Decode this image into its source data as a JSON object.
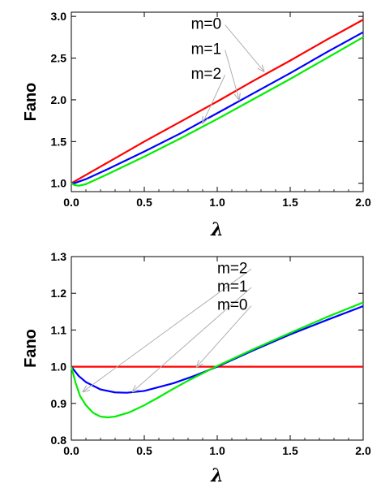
{
  "chart_data": [
    {
      "type": "line",
      "xlabel": "λ",
      "ylabel": "Fano",
      "xlim": [
        0,
        2.0
      ],
      "ylim": [
        0.9,
        3.05
      ],
      "x_ticks": [
        "0.0",
        "0.5",
        "1.0",
        "1.5",
        "2.0"
      ],
      "x_tick_values": [
        0,
        0.5,
        1.0,
        1.5,
        2.0
      ],
      "y_ticks": [
        "1.0",
        "1.5",
        "2.0",
        "2.5",
        "3.0"
      ],
      "y_tick_values": [
        1.0,
        1.5,
        2.0,
        2.5,
        3.0
      ],
      "series": [
        {
          "name": "m=0",
          "color": "#ff0000",
          "x": [
            0,
            0.25,
            0.5,
            0.75,
            1.0,
            1.25,
            1.5,
            1.75,
            2.0
          ],
          "values": [
            1.0,
            1.25,
            1.5,
            1.74,
            1.98,
            2.23,
            2.47,
            2.72,
            2.96
          ]
        },
        {
          "name": "m=1",
          "color": "#0000ff",
          "x": [
            0,
            0.02,
            0.1,
            0.25,
            0.5,
            0.75,
            1.0,
            1.25,
            1.5,
            1.75,
            2.0
          ],
          "values": [
            1.0,
            1.0,
            1.05,
            1.17,
            1.38,
            1.6,
            1.84,
            2.08,
            2.32,
            2.57,
            2.81
          ]
        },
        {
          "name": "m=2",
          "color": "#00ee00",
          "x": [
            0,
            0.02,
            0.05,
            0.1,
            0.15,
            0.25,
            0.5,
            0.75,
            1.0,
            1.25,
            1.5,
            1.75,
            2.0
          ],
          "values": [
            1.0,
            0.98,
            0.97,
            0.99,
            1.03,
            1.11,
            1.32,
            1.54,
            1.77,
            2.01,
            2.25,
            2.5,
            2.75
          ]
        }
      ],
      "annotations": [
        {
          "text": "m=0",
          "tx": 0.82,
          "ty": 2.85,
          "ax": 1.32,
          "ay": 2.34
        },
        {
          "text": "m=1",
          "tx": 0.82,
          "ty": 2.55,
          "ax": 1.15,
          "ay": 2.0
        },
        {
          "text": "m=2",
          "tx": 0.82,
          "ty": 2.25,
          "ax": 0.9,
          "ay": 1.72
        }
      ]
    },
    {
      "type": "line",
      "xlabel": "λ",
      "ylabel": "Fano",
      "xlim": [
        0,
        2.0
      ],
      "ylim": [
        0.8,
        1.3
      ],
      "x_ticks": [
        "0.0",
        "0.5",
        "1.0",
        "1.5",
        "2.0"
      ],
      "x_tick_values": [
        0,
        0.5,
        1.0,
        1.5,
        2.0
      ],
      "y_ticks": [
        "0.8",
        "0.9",
        "1.0",
        "1.1",
        "1.2",
        "1.3"
      ],
      "y_tick_values": [
        0.8,
        0.9,
        1.0,
        1.1,
        1.2,
        1.3
      ],
      "series": [
        {
          "name": "m=0",
          "color": "#ff0000",
          "x": [
            0,
            2.0
          ],
          "values": [
            1.0,
            1.0
          ]
        },
        {
          "name": "m=1",
          "color": "#0000ff",
          "x": [
            0,
            0.05,
            0.1,
            0.2,
            0.3,
            0.38,
            0.5,
            0.7,
            0.85,
            1.0,
            1.25,
            1.5,
            1.75,
            2.0
          ],
          "values": [
            1.0,
            0.975,
            0.958,
            0.938,
            0.93,
            0.929,
            0.934,
            0.955,
            0.976,
            1.0,
            1.045,
            1.088,
            1.127,
            1.165
          ]
        },
        {
          "name": "m=2",
          "color": "#00ee00",
          "x": [
            0,
            0.03,
            0.06,
            0.1,
            0.15,
            0.2,
            0.25,
            0.3,
            0.4,
            0.5,
            0.6,
            0.7,
            0.8,
            0.9,
            1.0,
            1.25,
            1.5,
            1.75,
            2.0
          ],
          "values": [
            1.0,
            0.955,
            0.92,
            0.895,
            0.874,
            0.864,
            0.862,
            0.864,
            0.876,
            0.895,
            0.917,
            0.94,
            0.962,
            0.982,
            1.002,
            1.048,
            1.092,
            1.135,
            1.175
          ]
        }
      ],
      "annotations": [
        {
          "text": "m=2",
          "tx": 1.0,
          "ty": 1.255,
          "ax": 0.08,
          "ay": 0.932
        },
        {
          "text": "m=1",
          "tx": 1.0,
          "ty": 1.205,
          "ax": 0.42,
          "ay": 0.932
        },
        {
          "text": "m=0",
          "tx": 1.0,
          "ty": 1.155,
          "ax": 0.86,
          "ay": 1.0
        }
      ]
    }
  ]
}
